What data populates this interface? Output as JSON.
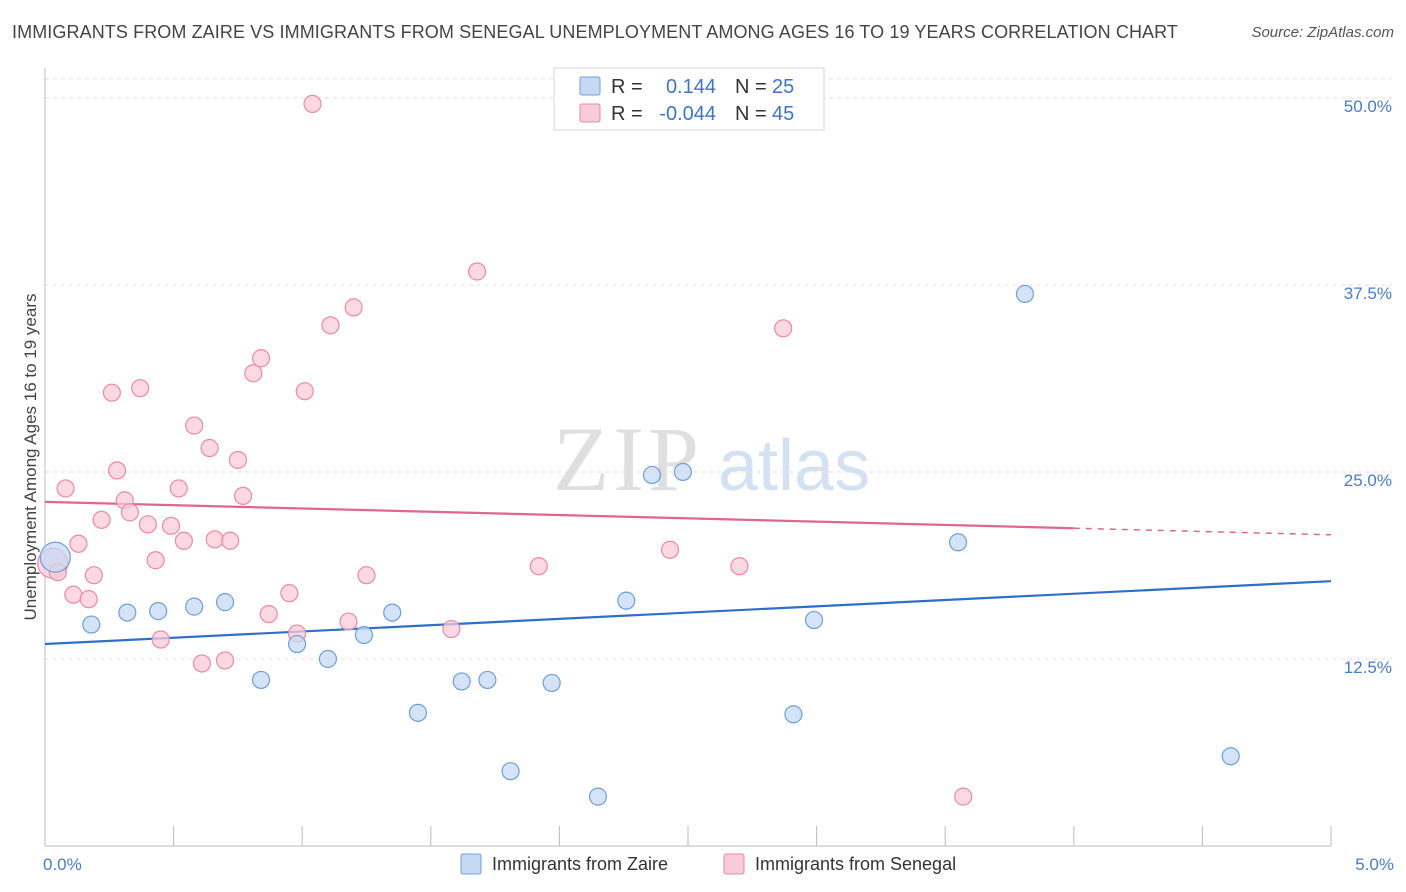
{
  "title": "IMMIGRANTS FROM ZAIRE VS IMMIGRANTS FROM SENEGAL UNEMPLOYMENT AMONG AGES 16 TO 19 YEARS CORRELATION CHART",
  "source": "Source: ZipAtlas.com",
  "watermark": {
    "zip": "ZIP",
    "atlas": "atlas"
  },
  "stats": {
    "zaire": {
      "r_label": "R =",
      "r_value": "0.144",
      "n_label": "N =",
      "n_value": "25"
    },
    "senegal": {
      "r_label": "R =",
      "r_value": "-0.044",
      "n_label": "N =",
      "n_value": "45"
    }
  },
  "colors": {
    "zaire_fill": "#c5d9f4",
    "zaire_stroke": "#6f9ed8",
    "zaire_line": "#2f6fc9",
    "senegal_fill": "#f9cbd8",
    "senegal_stroke": "#e98aa6",
    "senegal_line": "#e0668c",
    "value_text": "#3f74c4",
    "grid": "#dddddd"
  },
  "chart_data": {
    "type": "scatter",
    "title": "IMMIGRANTS FROM ZAIRE VS IMMIGRANTS FROM SENEGAL UNEMPLOYMENT AMONG AGES 16 TO 19 YEARS CORRELATION CHART",
    "xlabel": "",
    "ylabel": "Unemployment Among Ages 16 to 19 years",
    "xlim": [
      0,
      5
    ],
    "ylim": [
      0,
      52
    ],
    "x_tick_labels": [
      {
        "value": 0,
        "label": "0.0%"
      },
      {
        "value": 5,
        "label": "5.0%"
      }
    ],
    "y_tick_labels": [
      {
        "value": 12.5,
        "label": "12.5%"
      },
      {
        "value": 25,
        "label": "25.0%"
      },
      {
        "value": 37.5,
        "label": "37.5%"
      },
      {
        "value": 50,
        "label": "50.0%"
      }
    ],
    "grid": true,
    "legend_position": "bottom",
    "series": [
      {
        "name": "Immigrants from Zaire",
        "trend": {
          "x0": 0,
          "y0": 13.5,
          "x1": 5,
          "y1": 17.7,
          "dashed_from": null
        },
        "points": [
          {
            "x": 0.04,
            "y": 19.3,
            "big": true
          },
          {
            "x": 0.18,
            "y": 14.8
          },
          {
            "x": 0.32,
            "y": 15.6
          },
          {
            "x": 0.44,
            "y": 15.7
          },
          {
            "x": 0.58,
            "y": 16.0
          },
          {
            "x": 0.7,
            "y": 16.3
          },
          {
            "x": 0.84,
            "y": 11.1
          },
          {
            "x": 0.98,
            "y": 13.5
          },
          {
            "x": 1.1,
            "y": 12.5
          },
          {
            "x": 1.24,
            "y": 14.1
          },
          {
            "x": 1.35,
            "y": 15.6
          },
          {
            "x": 1.45,
            "y": 8.9
          },
          {
            "x": 1.62,
            "y": 11.0
          },
          {
            "x": 1.72,
            "y": 11.1
          },
          {
            "x": 1.81,
            "y": 5.0
          },
          {
            "x": 1.97,
            "y": 10.9
          },
          {
            "x": 2.15,
            "y": 3.3
          },
          {
            "x": 2.26,
            "y": 16.4
          },
          {
            "x": 2.36,
            "y": 24.8
          },
          {
            "x": 2.48,
            "y": 25.0
          },
          {
            "x": 2.91,
            "y": 8.8
          },
          {
            "x": 2.99,
            "y": 15.1
          },
          {
            "x": 3.55,
            "y": 20.3
          },
          {
            "x": 3.81,
            "y": 36.9
          },
          {
            "x": 4.61,
            "y": 6.0
          }
        ]
      },
      {
        "name": "Immigrants from Senegal",
        "trend": {
          "x0": 0,
          "y0": 23.0,
          "x1": 5,
          "y1": 20.8,
          "dashed_from": 4.0
        },
        "points": [
          {
            "x": 0.03,
            "y": 18.9,
            "big": true
          },
          {
            "x": 0.05,
            "y": 18.3
          },
          {
            "x": 0.08,
            "y": 23.9
          },
          {
            "x": 0.11,
            "y": 16.8
          },
          {
            "x": 0.13,
            "y": 20.2
          },
          {
            "x": 0.17,
            "y": 16.5
          },
          {
            "x": 0.19,
            "y": 18.1
          },
          {
            "x": 0.22,
            "y": 21.8
          },
          {
            "x": 0.26,
            "y": 30.3
          },
          {
            "x": 0.28,
            "y": 25.1
          },
          {
            "x": 0.31,
            "y": 23.1
          },
          {
            "x": 0.33,
            "y": 22.3
          },
          {
            "x": 0.37,
            "y": 30.6
          },
          {
            "x": 0.4,
            "y": 21.5
          },
          {
            "x": 0.43,
            "y": 19.1
          },
          {
            "x": 0.45,
            "y": 13.8
          },
          {
            "x": 0.49,
            "y": 21.4
          },
          {
            "x": 0.52,
            "y": 23.9
          },
          {
            "x": 0.54,
            "y": 20.4
          },
          {
            "x": 0.58,
            "y": 28.1
          },
          {
            "x": 0.61,
            "y": 12.2
          },
          {
            "x": 0.64,
            "y": 26.6
          },
          {
            "x": 0.66,
            "y": 20.5
          },
          {
            "x": 0.7,
            "y": 12.4
          },
          {
            "x": 0.72,
            "y": 20.4
          },
          {
            "x": 0.75,
            "y": 25.8
          },
          {
            "x": 0.77,
            "y": 23.4
          },
          {
            "x": 0.81,
            "y": 31.6
          },
          {
            "x": 0.84,
            "y": 32.6
          },
          {
            "x": 0.87,
            "y": 15.5
          },
          {
            "x": 0.95,
            "y": 16.9
          },
          {
            "x": 0.98,
            "y": 14.2
          },
          {
            "x": 1.01,
            "y": 30.4
          },
          {
            "x": 1.04,
            "y": 49.6
          },
          {
            "x": 1.11,
            "y": 34.8
          },
          {
            "x": 1.18,
            "y": 15.0
          },
          {
            "x": 1.2,
            "y": 36.0
          },
          {
            "x": 1.25,
            "y": 18.1
          },
          {
            "x": 1.58,
            "y": 14.5
          },
          {
            "x": 1.68,
            "y": 38.4
          },
          {
            "x": 1.92,
            "y": 18.7
          },
          {
            "x": 2.43,
            "y": 19.8
          },
          {
            "x": 2.7,
            "y": 18.7
          },
          {
            "x": 2.87,
            "y": 34.6
          },
          {
            "x": 3.57,
            "y": 3.3
          }
        ]
      }
    ]
  }
}
